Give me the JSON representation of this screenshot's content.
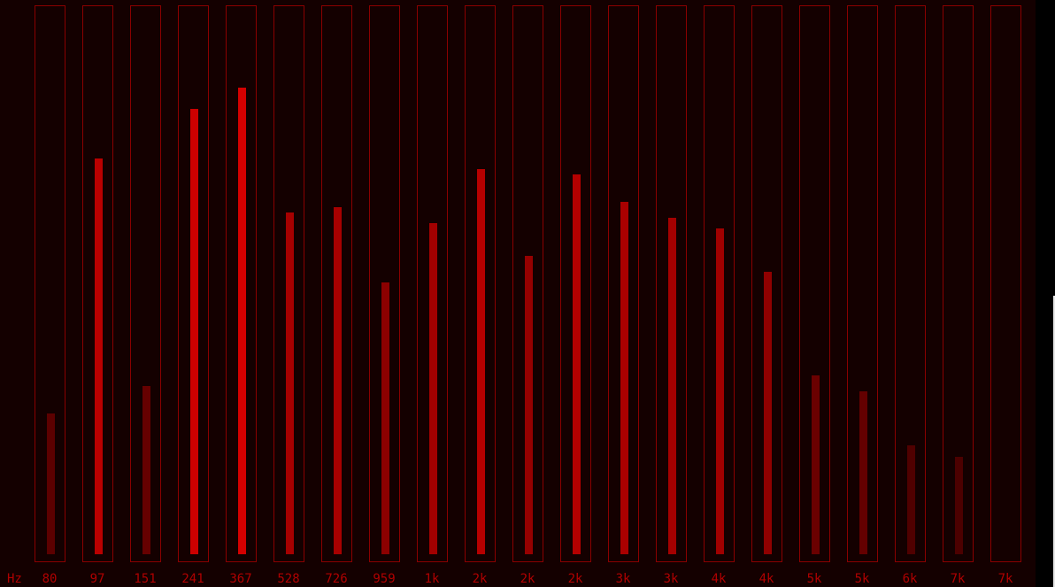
{
  "unit_label": "Hz",
  "colors": {
    "background": "#140000",
    "frame": "#8a0000",
    "label": "#b00000",
    "bar_max": "#d40000"
  },
  "bands": [
    {
      "label": "80",
      "level": 0.26
    },
    {
      "label": "97",
      "level": 0.73
    },
    {
      "label": "151",
      "level": 0.31
    },
    {
      "label": "241",
      "level": 0.82
    },
    {
      "label": "367",
      "level": 0.86
    },
    {
      "label": "528",
      "level": 0.63
    },
    {
      "label": "726",
      "level": 0.64
    },
    {
      "label": "959",
      "level": 0.5
    },
    {
      "label": "1k",
      "level": 0.61
    },
    {
      "label": "2k",
      "level": 0.71
    },
    {
      "label": "2k",
      "level": 0.55
    },
    {
      "label": "2k",
      "level": 0.7
    },
    {
      "label": "3k",
      "level": 0.65
    },
    {
      "label": "3k",
      "level": 0.62
    },
    {
      "label": "4k",
      "level": 0.6
    },
    {
      "label": "4k",
      "level": 0.52
    },
    {
      "label": "5k",
      "level": 0.33
    },
    {
      "label": "5k",
      "level": 0.3
    },
    {
      "label": "6k",
      "level": 0.2
    },
    {
      "label": "7k",
      "level": 0.18
    },
    {
      "label": "7k",
      "level": 0.0
    }
  ]
}
